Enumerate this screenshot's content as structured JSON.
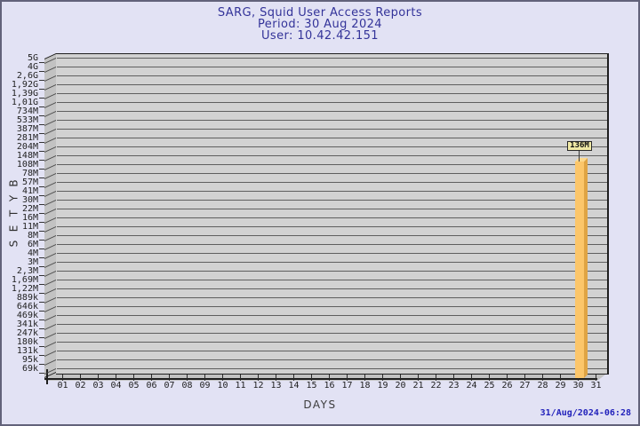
{
  "header": {
    "title": "SARG, Squid User Access Reports",
    "period": "Period: 30 Aug 2024",
    "user": "User: 10.42.42.151"
  },
  "footer": {
    "generated": "31/Aug/2024-06:28"
  },
  "chart_data": {
    "type": "bar",
    "title": "SARG, Squid User Access Reports",
    "subtitle": [
      "Period: 30 Aug 2024",
      "User: 10.42.42.151"
    ],
    "xlabel": "DAYS",
    "ylabel": "BYTES",
    "y_scale": "log",
    "y_min": 69000,
    "y_max": 5000000000,
    "grid": true,
    "style": "3d",
    "y_ticks": [
      "5G",
      "4G",
      "2,6G",
      "1,92G",
      "1,39G",
      "1,01G",
      "734M",
      "533M",
      "387M",
      "281M",
      "204M",
      "148M",
      "108M",
      "78M",
      "57M",
      "41M",
      "30M",
      "22M",
      "16M",
      "11M",
      "8M",
      "6M",
      "4M",
      "3M",
      "2,3M",
      "1,69M",
      "1,22M",
      "889k",
      "646k",
      "469k",
      "341k",
      "247k",
      "180k",
      "131k",
      "95k",
      "69k"
    ],
    "x_ticks": [
      "01",
      "02",
      "03",
      "04",
      "05",
      "06",
      "07",
      "08",
      "09",
      "10",
      "11",
      "12",
      "13",
      "14",
      "15",
      "16",
      "17",
      "18",
      "19",
      "20",
      "21",
      "22",
      "23",
      "24",
      "25",
      "26",
      "27",
      "28",
      "29",
      "30",
      "31"
    ],
    "bars": [
      {
        "day": "30",
        "value": 136000000,
        "value_label": "136M"
      }
    ],
    "colors": {
      "background": "#e2e2f4",
      "title_text": "#333399",
      "timestamp_text": "#2222bb",
      "plot_face": "#d2d2d2",
      "plot_wall": "#c2c2c2",
      "gridline": "#5f5f5f",
      "edge": "#1f1f1f",
      "bar_front": "#fcc66a",
      "bar_side": "#dfa444",
      "bar_top": "#fdd88c",
      "annotation_bg": "#f0e9a5",
      "annotation_border": "#2a2a2a"
    }
  }
}
